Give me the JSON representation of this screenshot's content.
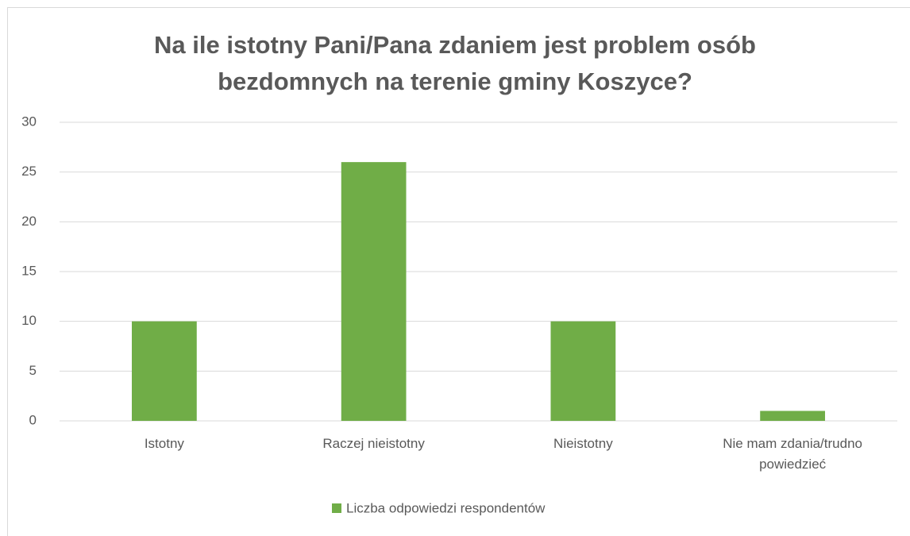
{
  "chart_data": {
    "type": "bar",
    "title": "Na ile istotny Pani/Pana zdaniem jest problem osób bezdomnych na terenie gminy Koszyce?",
    "categories": [
      "Istotny",
      "Raczej nieistotny",
      "Nieistotny",
      "Nie mam zdania/trudno powiedzieć"
    ],
    "series": [
      {
        "name": "Liczba odpowiedzi respondentów",
        "color": "#70ad47",
        "values": [
          10,
          26,
          10,
          1
        ]
      }
    ],
    "ylim": [
      0,
      30
    ],
    "yticks": [
      0,
      5,
      10,
      15,
      20,
      25,
      30
    ],
    "grid": true,
    "legend": "bottom"
  }
}
